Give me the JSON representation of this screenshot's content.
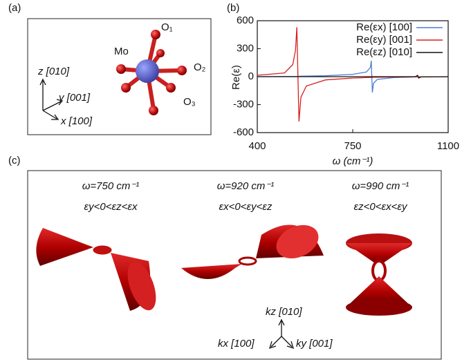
{
  "chart_data": {
    "type": "line",
    "panel_label": "(b)",
    "xlabel": "ω (cm⁻¹)",
    "ylabel": "Re(ε)",
    "x": [
      400,
      500,
      530,
      540,
      545,
      550,
      553,
      560,
      580,
      650,
      750,
      800,
      815,
      818,
      822,
      826,
      840,
      900,
      980,
      988,
      992,
      1000,
      1100
    ],
    "series": [
      {
        "name": "Re(εx) [100]",
        "color": "#4a7fd0",
        "values": [
          0,
          2,
          3,
          3,
          4,
          4,
          4,
          5,
          6,
          10,
          25,
          50,
          100,
          170,
          -170,
          -70,
          -30,
          -10,
          -3,
          -3,
          -3,
          -2,
          -1
        ]
      },
      {
        "name": "Re(εy) [001]",
        "color": "#d62020",
        "values": [
          15,
          40,
          130,
          280,
          530,
          -100,
          -480,
          -220,
          -100,
          -35,
          -15,
          -10,
          -8,
          -8,
          -8,
          -7,
          -6,
          -4,
          -2,
          -2,
          -2,
          -2,
          -1
        ]
      },
      {
        "name": "Re(εz) [010]",
        "color": "#111111",
        "values": [
          0,
          0,
          0,
          0,
          0,
          0,
          0,
          0,
          0,
          0,
          0,
          0,
          0,
          0,
          0,
          0,
          0,
          0,
          0,
          15,
          -15,
          -3,
          0
        ]
      }
    ],
    "xlim": [
      400,
      1100
    ],
    "xticks": [
      400,
      750,
      1100
    ],
    "ylim": [
      -600,
      600
    ],
    "yticks": [
      -600,
      -300,
      0,
      300,
      600
    ],
    "legend": "upper right"
  },
  "panel_a": {
    "label": "(a)",
    "atoms": {
      "mo": "Mo",
      "o1": "O₁",
      "o2": "O₂",
      "o3": "O₃"
    },
    "axes": {
      "z": "z [010]",
      "y": "y [001]",
      "x": "x [100]"
    }
  },
  "panel_c": {
    "label": "(c)",
    "columns": [
      {
        "frequency": "ω=750 cm⁻¹",
        "condition": "εy<0<εz<εx"
      },
      {
        "frequency": "ω=920 cm⁻¹",
        "condition": "εx<0<εy<εz"
      },
      {
        "frequency": "ω=990 cm⁻¹",
        "condition": "εz<0<εx<εy"
      }
    ],
    "axes": {
      "kz": "kz [010]",
      "kx": "kx [100]",
      "ky": "ky [001]"
    }
  }
}
